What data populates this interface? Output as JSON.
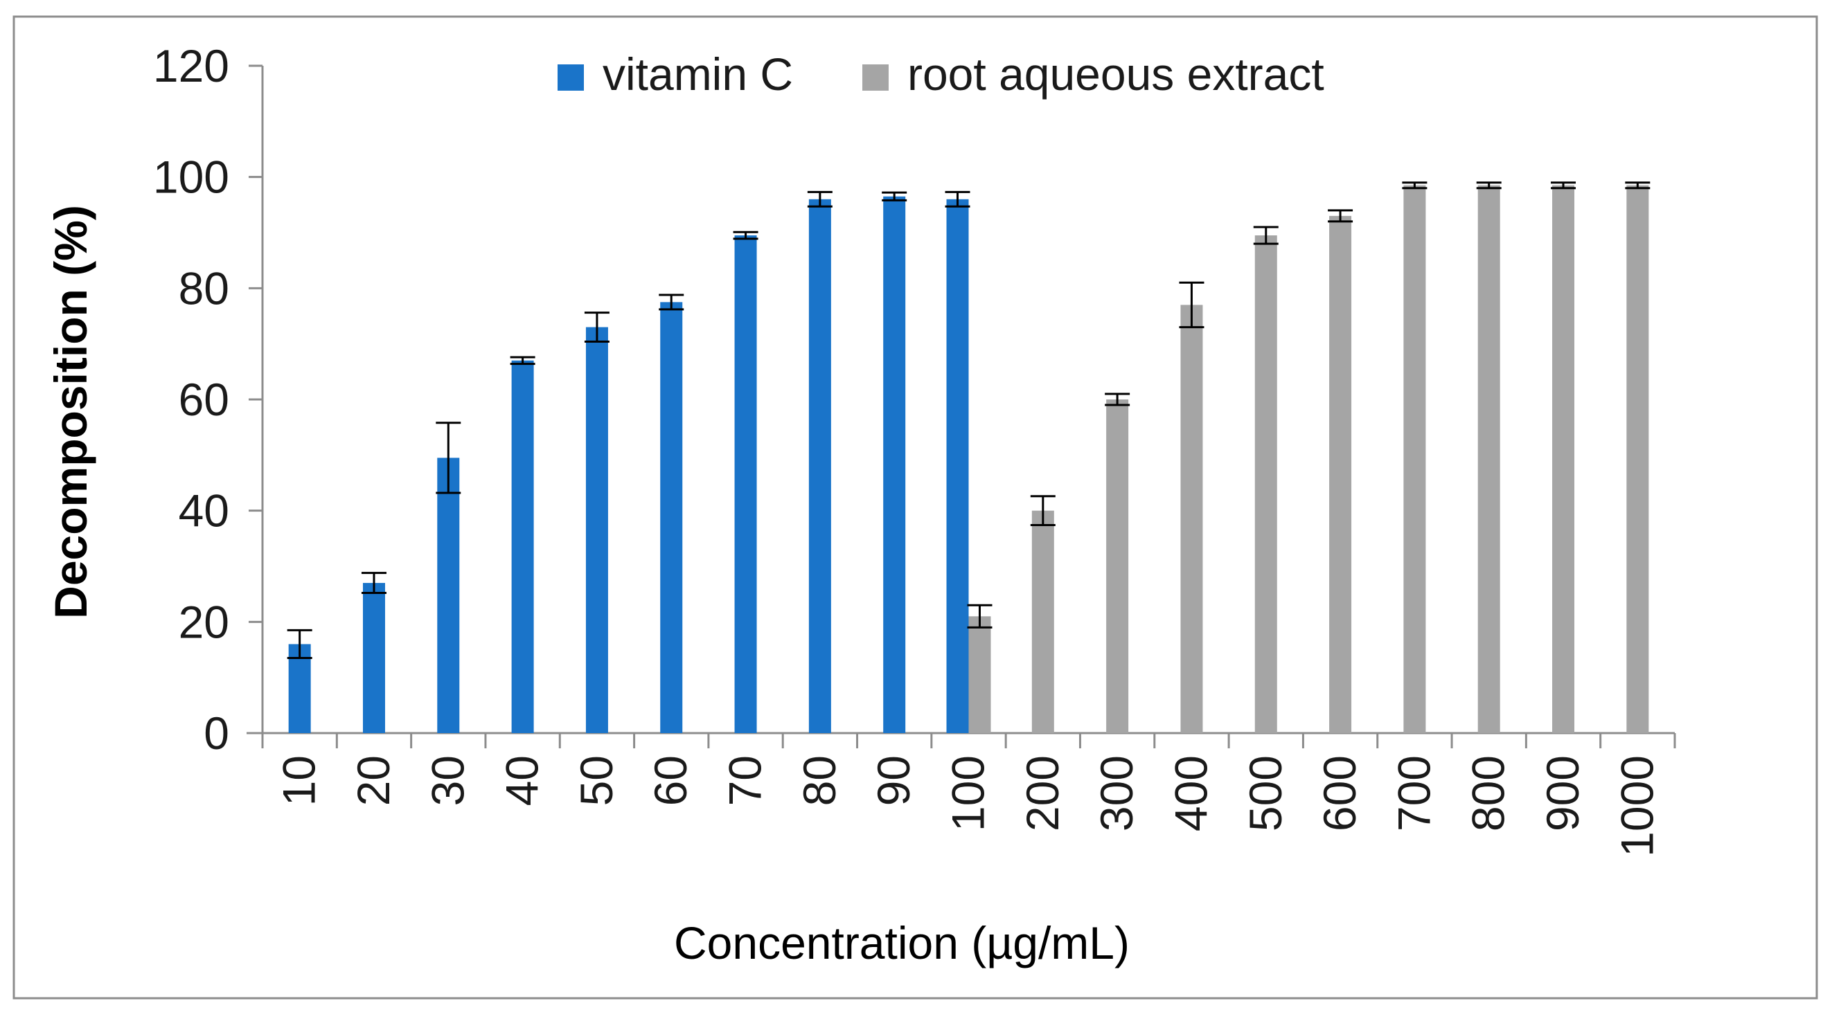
{
  "chart_data": {
    "type": "bar",
    "title": "",
    "xlabel": "Concentration (µg/mL)",
    "ylabel": "Decomposition (%)",
    "ylim": [
      0,
      120
    ],
    "yticks": [
      0,
      20,
      40,
      60,
      80,
      100,
      120
    ],
    "grid": false,
    "legend_position": "top-center",
    "categories": [
      "10",
      "20",
      "30",
      "40",
      "50",
      "60",
      "70",
      "80",
      "90",
      "100",
      "200",
      "300",
      "400",
      "500",
      "600",
      "700",
      "800",
      "900",
      "1000"
    ],
    "series": [
      {
        "name": "vitamin C",
        "color": "#1a74c9",
        "values": [
          16,
          27,
          49.5,
          67,
          73,
          77.5,
          89.5,
          96,
          96.5,
          96,
          null,
          null,
          null,
          null,
          null,
          null,
          null,
          null,
          null
        ],
        "errors": [
          2.5,
          1.8,
          6.3,
          0.6,
          2.6,
          1.3,
          0.6,
          1.3,
          0.7,
          1.3,
          null,
          null,
          null,
          null,
          null,
          null,
          null,
          null,
          null
        ]
      },
      {
        "name": "root aqueous extract",
        "color": "#a5a5a5",
        "values": [
          null,
          null,
          null,
          null,
          null,
          null,
          null,
          null,
          null,
          21,
          40,
          60,
          77,
          89.5,
          93,
          98.5,
          98.5,
          98.5,
          98.5
        ],
        "errors": [
          null,
          null,
          null,
          null,
          null,
          null,
          null,
          null,
          null,
          2,
          2.6,
          1,
          4,
          1.5,
          1,
          0.5,
          0.5,
          0.5,
          0.5
        ]
      }
    ]
  }
}
